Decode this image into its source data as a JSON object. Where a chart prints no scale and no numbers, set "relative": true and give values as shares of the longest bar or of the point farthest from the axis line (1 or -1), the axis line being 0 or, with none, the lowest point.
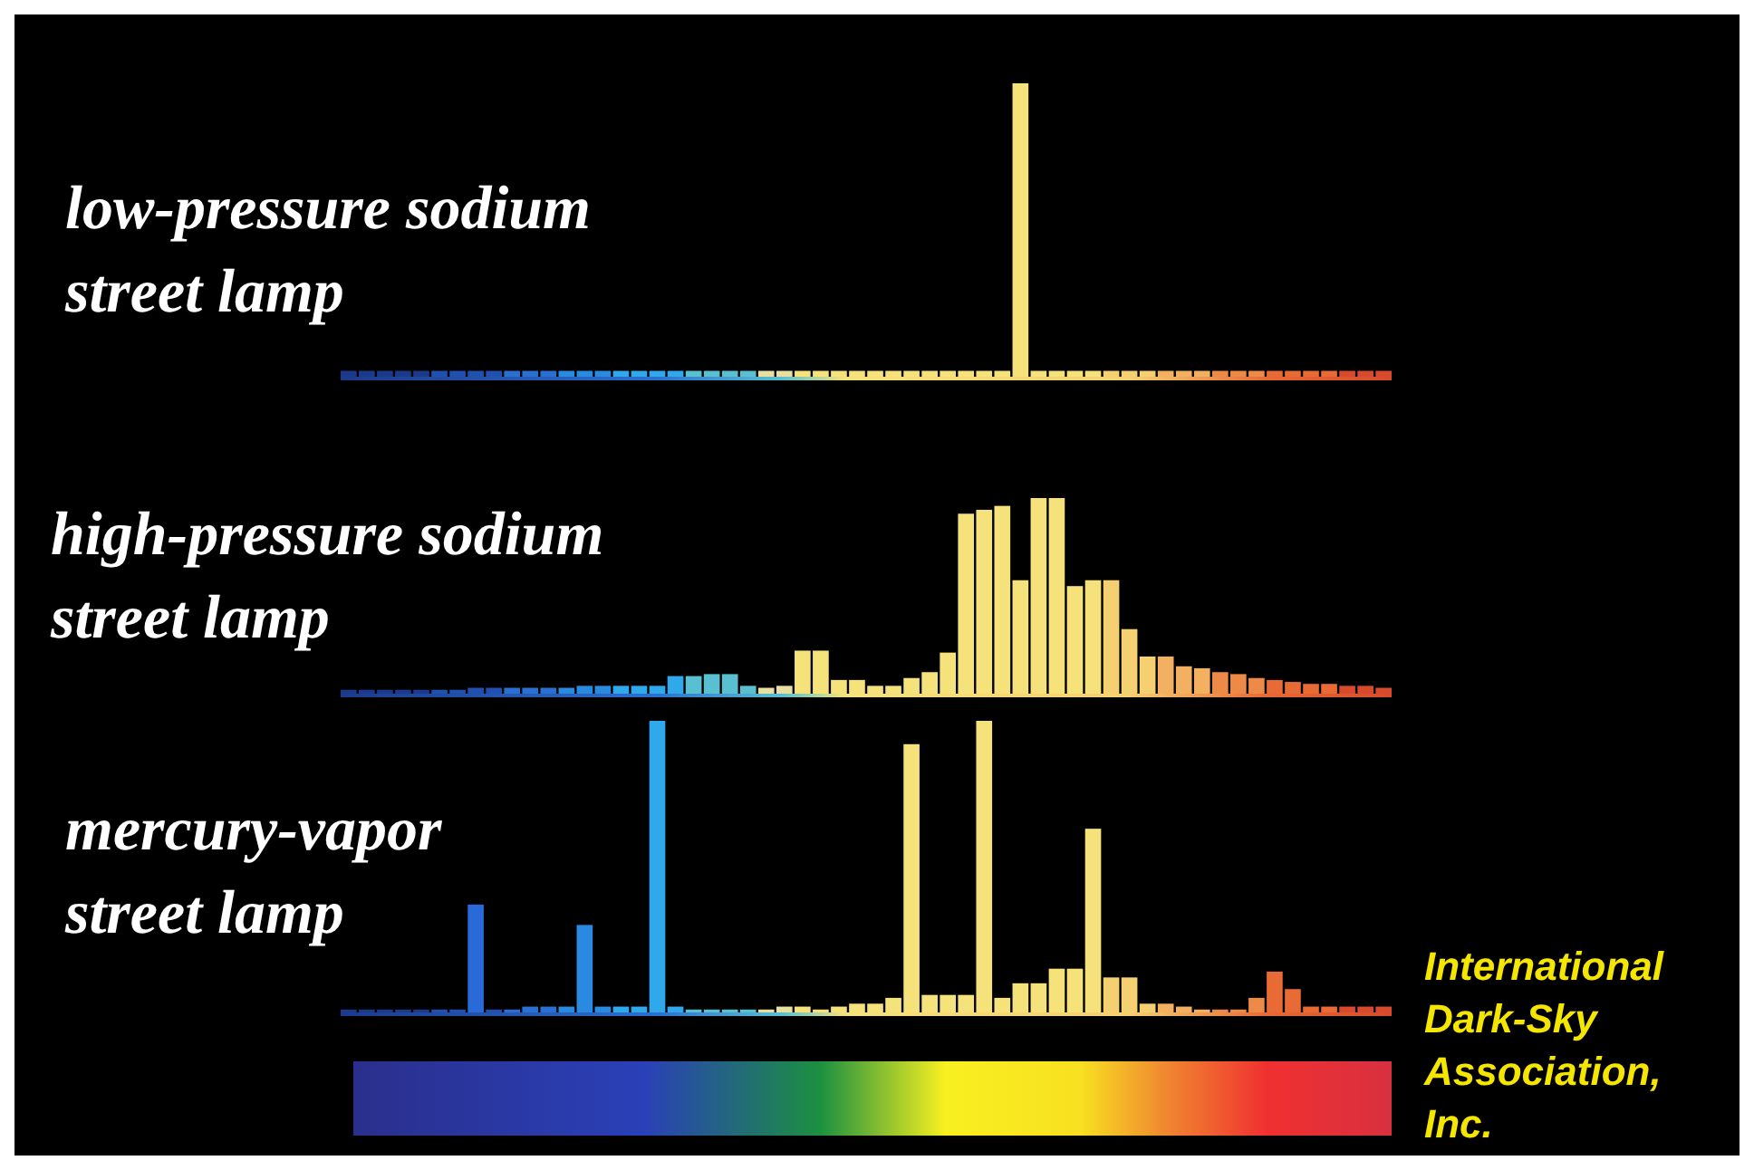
{
  "chart_data": [
    {
      "type": "bar",
      "relative": true,
      "title": "low-pressure sodium\nstreet lamp",
      "categories": [
        null,
        null,
        null,
        null,
        null,
        null,
        null,
        null,
        null,
        null,
        null,
        null,
        null,
        null,
        null,
        null,
        null,
        null,
        null,
        null,
        null,
        null,
        null,
        null,
        null,
        null,
        null,
        null,
        null,
        null,
        null,
        null,
        null,
        null,
        null,
        null,
        null,
        null,
        null,
        null,
        null,
        null,
        null,
        null,
        null,
        null,
        null,
        null,
        null,
        null,
        null,
        null,
        null,
        null,
        null,
        null,
        null,
        null
      ],
      "values": [
        0.02,
        0.02,
        0.02,
        0.02,
        0.02,
        0.02,
        0.02,
        0.02,
        0.02,
        0.02,
        0.02,
        0.02,
        0.02,
        0.02,
        0.02,
        0.02,
        0.02,
        0.02,
        0.02,
        0.02,
        0.02,
        0.02,
        0.02,
        0.02,
        0.02,
        0.02,
        0.02,
        0.02,
        0.02,
        0.02,
        0.02,
        0.02,
        0.02,
        0.02,
        0.02,
        0.02,
        0.02,
        1,
        0.02,
        0.02,
        0.02,
        0.02,
        0.02,
        0.02,
        0.02,
        0.02,
        0.02,
        0.02,
        0.02,
        0.02,
        0.02,
        0.02,
        0.02,
        0.02,
        0.02,
        0.02,
        0.02,
        0.02
      ],
      "colors": [
        "#1c3a8c",
        "#1c3a8c",
        "#1c3a8c",
        "#1c3a8c",
        "#1c3a8c",
        "#2050b0",
        "#2050b0",
        "#2050b0",
        "#2050b0",
        "#2a70d0",
        "#2a70d0",
        "#2a70d0",
        "#2a8ae0",
        "#2a8ae0",
        "#2a8ae0",
        "#30a8ec",
        "#30a8ec",
        "#30a8ec",
        "#30a8ec",
        "#58c0d0",
        "#58c0d0",
        "#58c0d0",
        "#58c0d0",
        "#e8e0a0",
        "#e8e0a0",
        "#f6e27a",
        "#f6e27a",
        "#f6e27a",
        "#f6e27a",
        "#f6e27a",
        "#f6e27a",
        "#f6e27a",
        "#f6e27a",
        "#f6e27a",
        "#f6e27a",
        "#f6e27a",
        "#f6e27a",
        "#f6e27a",
        "#f6e27a",
        "#f6e27a",
        "#f6e27a",
        "#f6e27a",
        "#f5d070",
        "#f5d070",
        "#f5d070",
        "#f2b060",
        "#f2b060",
        "#f2b060",
        "#ee8a48",
        "#ee8a48",
        "#ee8a48",
        "#e86a34",
        "#e86a34",
        "#e86a34",
        "#e86a34",
        "#d84a2c",
        "#d84a2c",
        "#d84a2c"
      ]
    },
    {
      "type": "bar",
      "relative": true,
      "title": "high-pressure sodium\nstreet lamp",
      "categories": [
        null,
        null,
        null,
        null,
        null,
        null,
        null,
        null,
        null,
        null,
        null,
        null,
        null,
        null,
        null,
        null,
        null,
        null,
        null,
        null,
        null,
        null,
        null,
        null,
        null,
        null,
        null,
        null,
        null,
        null,
        null,
        null,
        null,
        null,
        null,
        null,
        null,
        null,
        null,
        null,
        null,
        null,
        null,
        null,
        null,
        null,
        null,
        null,
        null,
        null,
        null,
        null,
        null,
        null,
        null,
        null,
        null,
        null
      ],
      "values": [
        0.02,
        0.02,
        0.02,
        0.02,
        0.02,
        0.02,
        0.02,
        0.03,
        0.03,
        0.03,
        0.03,
        0.03,
        0.03,
        0.04,
        0.04,
        0.04,
        0.04,
        0.04,
        0.09,
        0.09,
        0.1,
        0.1,
        0.04,
        0.03,
        0.04,
        0.22,
        0.22,
        0.07,
        0.07,
        0.04,
        0.04,
        0.08,
        0.11,
        0.21,
        0.92,
        0.94,
        0.96,
        0.58,
        1,
        1,
        0.55,
        0.58,
        0.58,
        0.33,
        0.19,
        0.19,
        0.14,
        0.13,
        0.11,
        0.1,
        0.08,
        0.07,
        0.06,
        0.05,
        0.05,
        0.04,
        0.04,
        0.03
      ],
      "colors": [
        "#1c3a8c",
        "#1c3a8c",
        "#1c3a8c",
        "#1c3a8c",
        "#1c3a8c",
        "#2050b0",
        "#2050b0",
        "#2050b0",
        "#2050b0",
        "#2a70d0",
        "#2a70d0",
        "#2a70d0",
        "#2a8ae0",
        "#2a8ae0",
        "#2a8ae0",
        "#30a8ec",
        "#30a8ec",
        "#30a8ec",
        "#30a8ec",
        "#58c0d0",
        "#58c0d0",
        "#58c0d0",
        "#58c0d0",
        "#e8e0a0",
        "#e8e0a0",
        "#f6e27a",
        "#f6e27a",
        "#f6e27a",
        "#f6e27a",
        "#f6e27a",
        "#f6e27a",
        "#f6e27a",
        "#f6e27a",
        "#f6e27a",
        "#f6e27a",
        "#f6e27a",
        "#f6e27a",
        "#f6e27a",
        "#f6e27a",
        "#f6e27a",
        "#f6e27a",
        "#f6e27a",
        "#f5d070",
        "#f5d070",
        "#f5d070",
        "#f2b060",
        "#f2b060",
        "#f2b060",
        "#ee8a48",
        "#ee8a48",
        "#ee8a48",
        "#e86a34",
        "#e86a34",
        "#e86a34",
        "#e86a34",
        "#d84a2c",
        "#d84a2c",
        "#d84a2c"
      ]
    },
    {
      "type": "bar",
      "relative": true,
      "title": "mercury-vapor\nstreet lamp",
      "annotations": [
        "International\nDark-Sky\nAssociation,\nInc."
      ],
      "categories": [
        null,
        null,
        null,
        null,
        null,
        null,
        null,
        null,
        null,
        null,
        null,
        null,
        null,
        null,
        null,
        null,
        null,
        null,
        null,
        null,
        null,
        null,
        null,
        null,
        null,
        null,
        null,
        null,
        null,
        null,
        null,
        null,
        null,
        null,
        null,
        null,
        null,
        null,
        null,
        null,
        null,
        null,
        null,
        null,
        null,
        null,
        null,
        null,
        null,
        null,
        null,
        null,
        null,
        null,
        null,
        null,
        null,
        null
      ],
      "values": [
        0.01,
        0.01,
        0.01,
        0.01,
        0.01,
        0.01,
        0.01,
        0.37,
        0.01,
        0.01,
        0.02,
        0.02,
        0.02,
        0.3,
        0.02,
        0.02,
        0.02,
        1,
        0.02,
        0.01,
        0.01,
        0.01,
        0.01,
        0.01,
        0.02,
        0.02,
        0.01,
        0.02,
        0.03,
        0.03,
        0.05,
        0.92,
        0.06,
        0.06,
        0.06,
        1,
        0.05,
        0.1,
        0.1,
        0.15,
        0.15,
        0.63,
        0.12,
        0.12,
        0.03,
        0.03,
        0.02,
        0.01,
        0.01,
        0.01,
        0.05,
        0.14,
        0.08,
        0.02,
        0.02,
        0.02,
        0.02,
        0.02
      ],
      "colors": [
        "#1c3a8c",
        "#1c3a8c",
        "#1c3a8c",
        "#1c3a8c",
        "#1c3a8c",
        "#2050b0",
        "#2050b0",
        "#2a6ad8",
        "#2050b0",
        "#2a70d0",
        "#2a70d0",
        "#2a70d0",
        "#2a8ae0",
        "#2a8ae0",
        "#2a8ae0",
        "#30a8ec",
        "#30a8ec",
        "#30a8ec",
        "#30a8ec",
        "#58c0d0",
        "#58c0d0",
        "#58c0d0",
        "#58c0d0",
        "#e8e0a0",
        "#e8e0a0",
        "#f6e27a",
        "#f6e27a",
        "#f6e27a",
        "#f6e27a",
        "#f6e27a",
        "#f6e27a",
        "#f6e27a",
        "#f6e27a",
        "#f6e27a",
        "#f6e27a",
        "#f6e27a",
        "#f6e27a",
        "#f6e27a",
        "#f6e27a",
        "#f6e27a",
        "#f6e27a",
        "#f6e27a",
        "#f5d070",
        "#f5d070",
        "#f5d070",
        "#f2b060",
        "#f2b060",
        "#f2b060",
        "#ee8a48",
        "#ee8a48",
        "#ee8a48",
        "#e86a34",
        "#e86a34",
        "#e86a34",
        "#e86a34",
        "#d84a2c",
        "#d84a2c",
        "#d84a2c"
      ]
    }
  ]
}
